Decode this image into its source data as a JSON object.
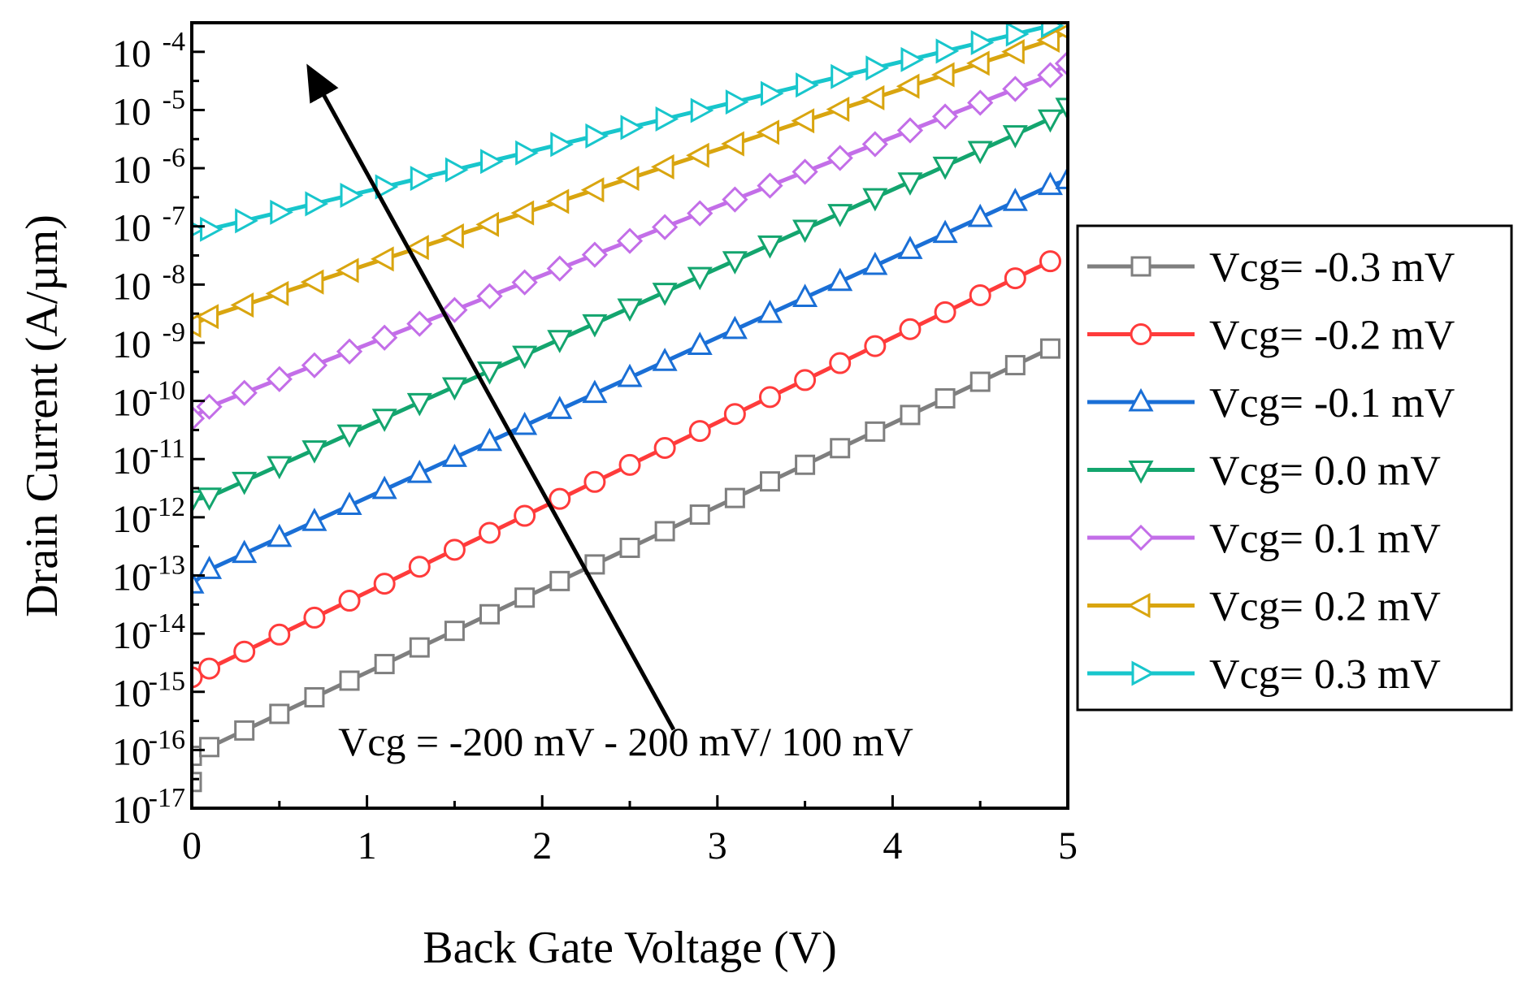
{
  "chart_data": {
    "type": "line",
    "title": "",
    "xlabel": "Back Gate Voltage (V)",
    "ylabel": "Drain Current (A/µm)",
    "xlim": [
      0,
      5
    ],
    "ylim_exponent": [
      -17,
      -3.5
    ],
    "yscale": "log",
    "x_ticks": [
      0,
      1,
      2,
      3,
      4,
      5
    ],
    "x_tick_labels": [
      "0",
      "1",
      "2",
      "3",
      "4",
      "5"
    ],
    "y_tick_exponents": [
      -17,
      -16,
      -15,
      -14,
      -13,
      -12,
      -11,
      -10,
      -9,
      -8,
      -7,
      -6,
      -5,
      -4
    ],
    "y_tick_base": "10",
    "y_tick_exponent_labels": [
      "-17",
      "-16",
      "-15",
      "-14",
      "-13",
      "-12",
      "-11",
      "-10",
      "-9",
      "-8",
      "-7",
      "-6",
      "-5",
      "-4"
    ],
    "legend_position": "right",
    "annotation": {
      "text": "Vcg = -200 mV - 200 mV/ 100 mV",
      "arrow": {
        "from": [
          2.75,
          -15.65
        ],
        "to": [
          0.7,
          -4.45
        ],
        "units": "data (x in V, y as log10 A/µm)"
      }
    },
    "series": [
      {
        "name": "Vcg= -0.3 mV",
        "color": "#7f7f7f",
        "marker": "square",
        "x_start": 0.1,
        "x_end": 4.9,
        "y_start_log": -15.95,
        "y_end_log": -9.1,
        "extra_points": [
          [
            0.0,
            -16.55
          ],
          [
            0.0,
            -16.1
          ]
        ]
      },
      {
        "name": "Vcg= -0.2 mV",
        "color": "#ff3b3b",
        "marker": "circle",
        "x_start": 0.1,
        "x_end": 4.9,
        "y_start_log": -14.6,
        "y_end_log": -7.6,
        "extra_points": [
          [
            0.0,
            -14.75
          ]
        ]
      },
      {
        "name": "Vcg= -0.1 mV",
        "color": "#1a6fd6",
        "marker": "triangle-up",
        "x_start": 0.1,
        "x_end": 4.9,
        "y_start_log": -12.9,
        "y_end_log": -6.3,
        "extra_points": [
          [
            0.0,
            -13.15
          ],
          [
            5.0,
            -6.2
          ]
        ]
      },
      {
        "name": "Vcg= 0.0 mV",
        "color": "#13a56e",
        "marker": "triangle-down",
        "x_start": 0.1,
        "x_end": 4.9,
        "y_start_log": -11.65,
        "y_end_log": -5.15,
        "extra_points": [
          [
            0.0,
            -11.7
          ],
          [
            5.0,
            -4.95
          ]
        ]
      },
      {
        "name": "Vcg= 0.1 mV",
        "color": "#c36ee8",
        "marker": "diamond",
        "x_start": 0.1,
        "x_end": 4.9,
        "y_start_log": -10.1,
        "y_end_log": -4.4,
        "extra_points": [
          [
            0.0,
            -10.3
          ],
          [
            5.0,
            -4.2
          ]
        ]
      },
      {
        "name": "Vcg= 0.2 mV",
        "color": "#d9a50f",
        "marker": "triangle-left",
        "x_start": 0.1,
        "x_end": 4.9,
        "y_start_log": -8.55,
        "y_end_log": -3.8,
        "extra_points": [
          [
            0.0,
            -8.7
          ],
          [
            5.0,
            -3.65
          ]
        ]
      },
      {
        "name": "Vcg= 0.3 mV",
        "color": "#18c6cc",
        "marker": "triangle-right",
        "x_start": 0.1,
        "x_end": 4.9,
        "y_start_log": -7.05,
        "y_end_log": -3.55,
        "extra_points": [
          [
            0.0,
            -7.05
          ]
        ]
      }
    ]
  }
}
